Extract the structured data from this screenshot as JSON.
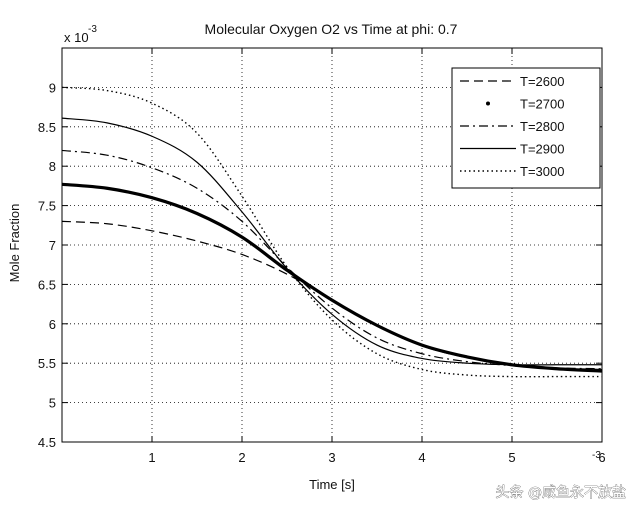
{
  "chart_data": {
    "type": "line",
    "title": "Molecular Oxygen O2 vs Time at phi: 0.7",
    "xlabel": "Time [s]",
    "ylabel": "Mole Fraction",
    "y_multiplier": "x 10",
    "y_exponent": "-3",
    "x_multiplier_fragment": "-3",
    "xlim": [
      0,
      6
    ],
    "ylim": [
      4.5,
      9.5
    ],
    "xticks": [
      1,
      2,
      3,
      4,
      5,
      6
    ],
    "xtick_labels": [
      "1",
      "2",
      "3",
      "4",
      "5",
      "6"
    ],
    "yticks": [
      4.5,
      5,
      5.5,
      6,
      6.5,
      7,
      7.5,
      8,
      8.5,
      9
    ],
    "ytick_labels": [
      "4.5",
      "5",
      "5.5",
      "6",
      "6.5",
      "7",
      "7.5",
      "8",
      "8.5",
      "9"
    ],
    "grid": true,
    "legend_position": "top-right",
    "x": [
      0,
      0.5,
      1,
      1.5,
      2,
      2.5,
      3,
      3.5,
      4,
      4.5,
      5,
      5.5,
      6
    ],
    "series": [
      {
        "name": "T=2600",
        "style": "dashed",
        "values": [
          7.3,
          7.27,
          7.18,
          7.05,
          6.88,
          6.63,
          6.3,
          5.97,
          5.72,
          5.57,
          5.49,
          5.44,
          5.42
        ]
      },
      {
        "name": "T=2700",
        "style": "thick",
        "values": [
          7.77,
          7.72,
          7.6,
          7.4,
          7.1,
          6.68,
          6.3,
          5.98,
          5.73,
          5.58,
          5.48,
          5.43,
          5.4
        ]
      },
      {
        "name": "T=2800",
        "style": "dashdot",
        "values": [
          8.2,
          8.14,
          7.98,
          7.72,
          7.3,
          6.72,
          6.2,
          5.82,
          5.62,
          5.52,
          5.47,
          5.44,
          5.43
        ]
      },
      {
        "name": "T=2900",
        "style": "solid",
        "values": [
          8.61,
          8.55,
          8.38,
          8.05,
          7.42,
          6.7,
          6.12,
          5.73,
          5.56,
          5.5,
          5.48,
          5.48,
          5.48
        ]
      },
      {
        "name": "T=3000",
        "style": "dotted",
        "values": [
          9.0,
          8.96,
          8.8,
          8.42,
          7.62,
          6.72,
          6.05,
          5.62,
          5.42,
          5.35,
          5.33,
          5.33,
          5.33
        ]
      }
    ]
  },
  "watermark": {
    "text": "头条 @咸鱼永不放盐"
  }
}
